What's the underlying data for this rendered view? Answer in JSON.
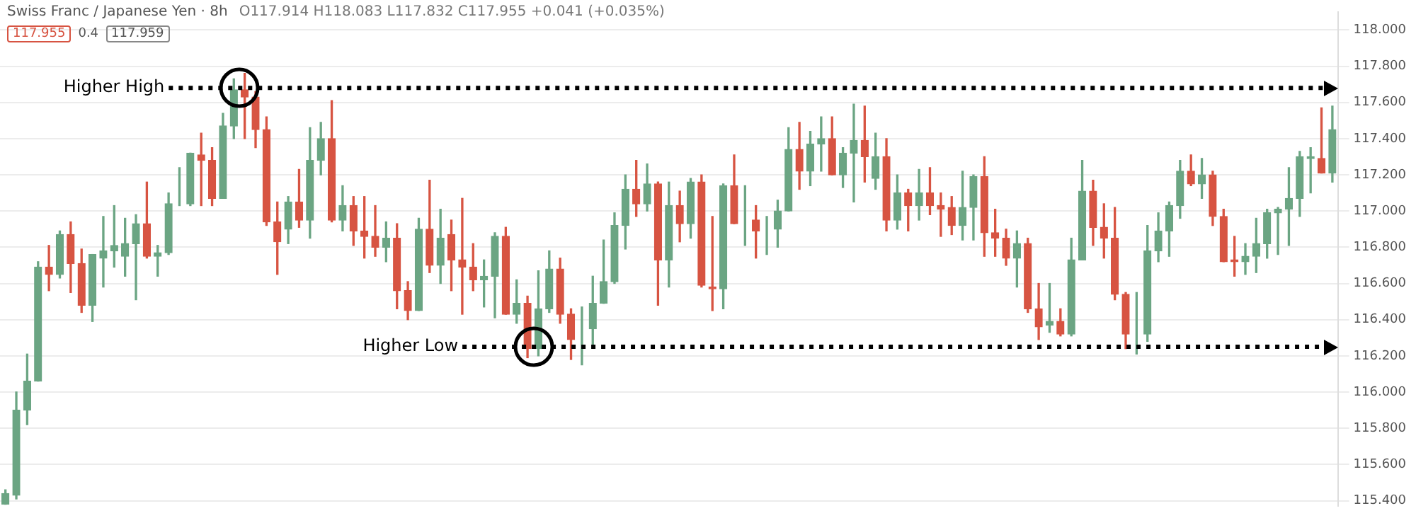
{
  "chart_data": {
    "type": "candlestick",
    "title": "Swiss Franc / Japanese Yen · 8h",
    "annotations": [
      "O117.914 H118.083 L117.832 C117.955 +0.041 (+0.035%)",
      "117.955",
      "0.4",
      "117.959"
    ],
    "categories": [
      null,
      null,
      null,
      null,
      null,
      null,
      null,
      null,
      null,
      null,
      null,
      null,
      null,
      null,
      null,
      null,
      null,
      null,
      null,
      null,
      null,
      null,
      null,
      null,
      null,
      null,
      null,
      null,
      null,
      null,
      null,
      null,
      null,
      null,
      null,
      null,
      null,
      null,
      null,
      null,
      null,
      null,
      null,
      null,
      null,
      null,
      null,
      null,
      null,
      null,
      null,
      null,
      null,
      null,
      null,
      null,
      null,
      null,
      null,
      null,
      null,
      null,
      null,
      null,
      null,
      null,
      null,
      null,
      null,
      null,
      null,
      null,
      null,
      null,
      null,
      null,
      null,
      null,
      null,
      null,
      null,
      null,
      null,
      null,
      null,
      null,
      null,
      null,
      null,
      null,
      null,
      null,
      null,
      null,
      null,
      null,
      null,
      null,
      null,
      null,
      null,
      null,
      null,
      null,
      null,
      null,
      null,
      null,
      null,
      null,
      null,
      null,
      null,
      null,
      null,
      null,
      null,
      null,
      null,
      null,
      null,
      null,
      null
    ],
    "ohlc": [
      [
        115.38,
        115.46,
        115.38,
        115.44
      ],
      [
        115.43,
        116.0,
        115.41,
        115.9
      ],
      [
        115.9,
        116.21,
        115.82,
        116.06
      ],
      [
        116.06,
        116.72,
        116.06,
        116.69
      ],
      [
        116.69,
        116.81,
        116.56,
        116.65
      ],
      [
        116.65,
        116.89,
        116.63,
        116.87
      ],
      [
        116.87,
        116.94,
        116.55,
        116.71
      ],
      [
        116.71,
        116.79,
        116.44,
        116.48
      ],
      [
        116.48,
        116.76,
        116.39,
        116.76
      ],
      [
        116.74,
        116.97,
        116.58,
        116.78
      ],
      [
        116.78,
        117.03,
        116.69,
        116.81
      ],
      [
        116.75,
        116.96,
        116.64,
        116.82
      ],
      [
        116.82,
        116.98,
        116.51,
        116.93
      ],
      [
        116.93,
        117.16,
        116.74,
        116.75
      ],
      [
        116.75,
        116.81,
        116.64,
        116.77
      ],
      [
        116.77,
        117.1,
        116.76,
        117.04
      ],
      [
        117.04,
        117.24,
        117.03,
        117.04
      ],
      [
        117.04,
        117.32,
        117.03,
        117.32
      ],
      [
        117.31,
        117.43,
        117.03,
        117.28
      ],
      [
        117.28,
        117.35,
        117.03,
        117.07
      ],
      [
        117.07,
        117.54,
        117.07,
        117.47
      ],
      [
        117.47,
        117.73,
        117.4,
        117.67
      ],
      [
        117.67,
        117.76,
        117.4,
        117.63
      ],
      [
        117.63,
        117.66,
        117.35,
        117.45
      ],
      [
        117.45,
        117.52,
        116.92,
        116.94
      ],
      [
        116.94,
        117.05,
        116.65,
        116.83
      ],
      [
        116.9,
        117.08,
        116.82,
        117.05
      ],
      [
        117.05,
        117.23,
        116.91,
        116.95
      ],
      [
        116.95,
        117.46,
        116.85,
        117.28
      ],
      [
        117.28,
        117.49,
        117.2,
        117.4
      ],
      [
        117.4,
        117.61,
        116.94,
        116.95
      ],
      [
        116.95,
        117.14,
        116.89,
        117.03
      ],
      [
        117.03,
        117.08,
        116.81,
        116.89
      ],
      [
        116.89,
        117.08,
        116.74,
        116.86
      ],
      [
        116.86,
        117.03,
        116.75,
        116.8
      ],
      [
        116.8,
        116.94,
        116.72,
        116.85
      ],
      [
        116.85,
        116.93,
        116.46,
        116.56
      ],
      [
        116.56,
        116.61,
        116.4,
        116.45
      ],
      [
        116.45,
        116.96,
        116.45,
        116.9
      ],
      [
        116.9,
        117.17,
        116.66,
        116.7
      ],
      [
        116.7,
        117.01,
        116.6,
        116.85
      ],
      [
        116.87,
        116.95,
        116.56,
        116.73
      ],
      [
        116.73,
        117.07,
        116.43,
        116.69
      ],
      [
        116.69,
        116.82,
        116.56,
        116.62
      ],
      [
        116.62,
        116.73,
        116.47,
        116.64
      ],
      [
        116.64,
        116.88,
        116.41,
        116.86
      ],
      [
        116.86,
        116.91,
        116.43,
        116.43
      ],
      [
        116.43,
        116.62,
        116.38,
        116.49
      ],
      [
        116.49,
        116.53,
        116.19,
        116.24
      ],
      [
        116.24,
        116.67,
        116.2,
        116.46
      ],
      [
        116.46,
        116.78,
        116.44,
        116.68
      ],
      [
        116.68,
        116.74,
        116.38,
        116.43
      ],
      [
        116.43,
        116.46,
        116.18,
        116.29
      ],
      [
        116.35,
        116.47,
        116.15,
        116.35
      ],
      [
        116.35,
        116.64,
        116.26,
        116.49
      ],
      [
        116.49,
        116.84,
        116.49,
        116.61
      ],
      [
        116.61,
        116.99,
        116.6,
        116.92
      ],
      [
        116.92,
        117.2,
        116.79,
        117.12
      ],
      [
        117.12,
        117.28,
        116.97,
        117.04
      ],
      [
        117.04,
        117.26,
        117.0,
        117.15
      ],
      [
        117.15,
        117.16,
        116.48,
        116.73
      ],
      [
        116.73,
        117.16,
        116.58,
        117.03
      ],
      [
        117.03,
        117.11,
        116.83,
        116.93
      ],
      [
        116.93,
        117.18,
        116.85,
        117.16
      ],
      [
        117.16,
        117.2,
        116.58,
        116.59
      ],
      [
        116.58,
        116.97,
        116.45,
        116.57
      ],
      [
        116.57,
        117.15,
        116.46,
        117.14
      ],
      [
        117.14,
        117.31,
        116.93,
        116.93
      ],
      [
        116.94,
        117.14,
        116.81,
        116.94
      ],
      [
        116.95,
        117.03,
        116.74,
        116.89
      ],
      [
        116.9,
        116.97,
        116.76,
        116.9
      ],
      [
        116.9,
        117.06,
        116.8,
        117.0
      ],
      [
        117.0,
        117.46,
        117.0,
        117.34
      ],
      [
        117.34,
        117.49,
        117.12,
        117.22
      ],
      [
        117.22,
        117.44,
        117.14,
        117.37
      ],
      [
        117.37,
        117.52,
        117.22,
        117.4
      ],
      [
        117.4,
        117.52,
        117.2,
        117.2
      ],
      [
        117.2,
        117.35,
        117.13,
        117.32
      ],
      [
        117.32,
        117.59,
        117.05,
        117.39
      ],
      [
        117.39,
        117.58,
        117.16,
        117.3
      ],
      [
        117.18,
        117.43,
        117.12,
        117.3
      ],
      [
        117.3,
        117.4,
        116.89,
        116.95
      ],
      [
        116.95,
        117.2,
        116.9,
        117.1
      ],
      [
        117.1,
        117.12,
        116.89,
        117.03
      ],
      [
        117.03,
        117.23,
        116.95,
        117.1
      ],
      [
        117.1,
        117.24,
        116.98,
        117.03
      ],
      [
        117.03,
        117.1,
        116.86,
        117.01
      ],
      [
        117.02,
        117.08,
        116.87,
        116.92
      ],
      [
        116.92,
        117.22,
        116.84,
        117.02
      ],
      [
        117.02,
        117.2,
        116.84,
        117.19
      ],
      [
        117.19,
        117.3,
        116.75,
        116.88
      ],
      [
        116.88,
        117.01,
        116.75,
        116.85
      ],
      [
        116.85,
        116.9,
        116.7,
        116.74
      ],
      [
        116.74,
        116.89,
        116.58,
        116.82
      ],
      [
        116.82,
        116.85,
        116.44,
        116.46
      ],
      [
        116.46,
        116.6,
        116.29,
        116.36
      ],
      [
        116.37,
        116.6,
        116.33,
        116.39
      ],
      [
        116.39,
        116.46,
        116.31,
        116.32
      ],
      [
        116.32,
        116.85,
        116.31,
        116.73
      ],
      [
        116.73,
        117.28,
        116.73,
        117.11
      ],
      [
        117.11,
        117.17,
        116.81,
        116.91
      ],
      [
        116.91,
        117.04,
        116.74,
        116.85
      ],
      [
        116.85,
        117.02,
        116.51,
        116.54
      ],
      [
        116.54,
        116.55,
        116.24,
        116.32
      ],
      [
        116.33,
        116.55,
        116.21,
        116.33
      ],
      [
        116.32,
        116.92,
        116.28,
        116.78
      ],
      [
        116.78,
        116.99,
        116.72,
        116.89
      ],
      [
        116.89,
        117.05,
        116.75,
        117.03
      ],
      [
        117.03,
        117.28,
        116.96,
        117.22
      ],
      [
        117.22,
        117.31,
        117.14,
        117.15
      ],
      [
        117.15,
        117.29,
        117.07,
        117.2
      ],
      [
        117.2,
        117.22,
        116.92,
        116.97
      ],
      [
        116.97,
        117.01,
        116.72,
        116.72
      ],
      [
        116.73,
        116.86,
        116.64,
        116.72
      ],
      [
        116.72,
        116.82,
        116.65,
        116.75
      ],
      [
        116.75,
        116.96,
        116.66,
        116.82
      ],
      [
        116.82,
        117.01,
        116.74,
        116.99
      ],
      [
        116.99,
        117.02,
        116.76,
        117.01
      ],
      [
        117.01,
        117.24,
        116.81,
        117.07
      ],
      [
        117.07,
        117.33,
        116.97,
        117.3
      ],
      [
        117.29,
        117.35,
        117.1,
        117.3
      ],
      [
        117.29,
        117.57,
        117.21,
        117.21
      ],
      [
        117.21,
        117.58,
        117.16,
        117.45
      ]
    ],
    "colors": [
      "#6ba583",
      "#6ba583",
      "#6ba583",
      "#6ba583",
      "#d75442",
      "#6ba583",
      "#d75442",
      "#d75442",
      "#6ba583",
      "#6ba583",
      "#6ba583",
      "#6ba583",
      "#6ba583",
      "#d75442",
      "#6ba583",
      "#6ba583",
      "#6ba583",
      "#6ba583",
      "#d75442",
      "#d75442",
      "#6ba583",
      "#6ba583",
      "#d75442",
      "#d75442",
      "#d75442",
      "#d75442",
      "#6ba583",
      "#d75442",
      "#6ba583",
      "#6ba583",
      "#d75442",
      "#6ba583",
      "#d75442",
      "#d75442",
      "#d75442",
      "#6ba583",
      "#d75442",
      "#d75442",
      "#6ba583",
      "#d75442",
      "#6ba583",
      "#d75442",
      "#d75442",
      "#d75442",
      "#6ba583",
      "#6ba583",
      "#d75442",
      "#6ba583",
      "#d75442",
      "#6ba583",
      "#6ba583",
      "#d75442",
      "#d75442",
      "#6ba583",
      "#6ba583",
      "#6ba583",
      "#6ba583",
      "#6ba583",
      "#d75442",
      "#6ba583",
      "#d75442",
      "#6ba583",
      "#d75442",
      "#6ba583",
      "#d75442",
      "#d75442",
      "#6ba583",
      "#d75442",
      "#6ba583",
      "#d75442",
      "#6ba583",
      "#6ba583",
      "#6ba583",
      "#d75442",
      "#6ba583",
      "#6ba583",
      "#d75442",
      "#6ba583",
      "#6ba583",
      "#d75442",
      "#6ba583",
      "#d75442",
      "#6ba583",
      "#d75442",
      "#6ba583",
      "#d75442",
      "#d75442",
      "#d75442",
      "#6ba583",
      "#6ba583",
      "#d75442",
      "#d75442",
      "#d75442",
      "#6ba583",
      "#d75442",
      "#d75442",
      "#6ba583",
      "#d75442",
      "#6ba583",
      "#6ba583",
      "#d75442",
      "#d75442",
      "#d75442",
      "#d75442",
      "#6ba583",
      "#6ba583",
      "#6ba583",
      "#6ba583",
      "#6ba583",
      "#d75442",
      "#6ba583",
      "#d75442",
      "#d75442",
      "#d75442",
      "#6ba583",
      "#6ba583",
      "#6ba583",
      "#6ba583",
      "#6ba583",
      "#6ba583",
      "#6ba583",
      "#d75442",
      "#6ba583"
    ],
    "ylim": [
      115.37,
      118.1
    ],
    "yticks": [
      {
        "value": 115.4,
        "label": "115.400"
      },
      {
        "value": 115.6,
        "label": "115.600"
      },
      {
        "value": 115.8,
        "label": "115.800"
      },
      {
        "value": 116,
        "label": "116.000"
      },
      {
        "value": 116.2,
        "label": "116.200"
      },
      {
        "value": 116.4,
        "label": "116.400"
      },
      {
        "value": 116.6,
        "label": "116.600"
      },
      {
        "value": 116.8,
        "label": "116.800"
      },
      {
        "value": 117,
        "label": "117.000"
      },
      {
        "value": 117.2,
        "label": "117.200"
      },
      {
        "value": 117.4,
        "label": "117.400"
      },
      {
        "value": 117.6,
        "label": "117.600"
      },
      {
        "value": 117.8,
        "label": "117.800"
      },
      {
        "value": 118,
        "label": "118.000"
      }
    ],
    "grid": "y",
    "ref_lines": [
      {
        "axis": "y",
        "value": 117.68,
        "label": "Higher High",
        "color": "#000000",
        "line_style": "dotted"
      },
      {
        "axis": "y",
        "value": 116.25,
        "label": "Higher Low",
        "color": "#000000",
        "line_style": "dotted"
      }
    ]
  }
}
